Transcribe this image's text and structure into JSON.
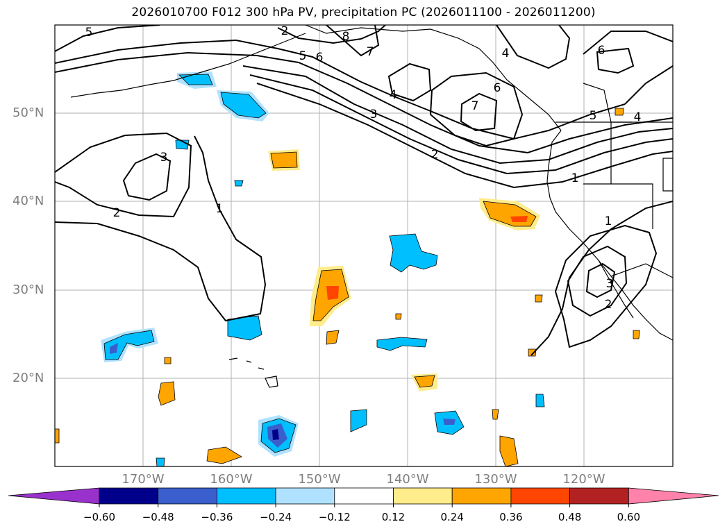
{
  "title": "2026010700 F012 300 hPa PV, precipitation PC (2026011100 - 2026011200)",
  "lat_labels": [
    "50°N",
    "40°N",
    "30°N",
    "20°N"
  ],
  "lon_labels": [
    "170°W",
    "160°W",
    "150°W",
    "140°W",
    "130°W",
    "120°W"
  ],
  "colorbar": {
    "colors": [
      "#9932cc",
      "#00008b",
      "#3a5fcd",
      "#00bfff",
      "#b0e2ff",
      "#ffffff",
      "#ffec8b",
      "#ffa500",
      "#ff4500",
      "#b22222",
      "#ff82ab"
    ],
    "ticks": [
      "−0.60",
      "−0.48",
      "−0.36",
      "−0.24",
      "−0.12",
      "0.12",
      "0.24",
      "0.36",
      "0.48",
      "0.60"
    ]
  },
  "contour_labels": [
    "5",
    "2",
    "8",
    "7",
    "6",
    "5",
    "4",
    "4",
    "3",
    "7",
    "6",
    "2",
    "3",
    "2",
    "1",
    "1",
    "5",
    "4",
    "6",
    "1",
    "3",
    "2"
  ]
}
